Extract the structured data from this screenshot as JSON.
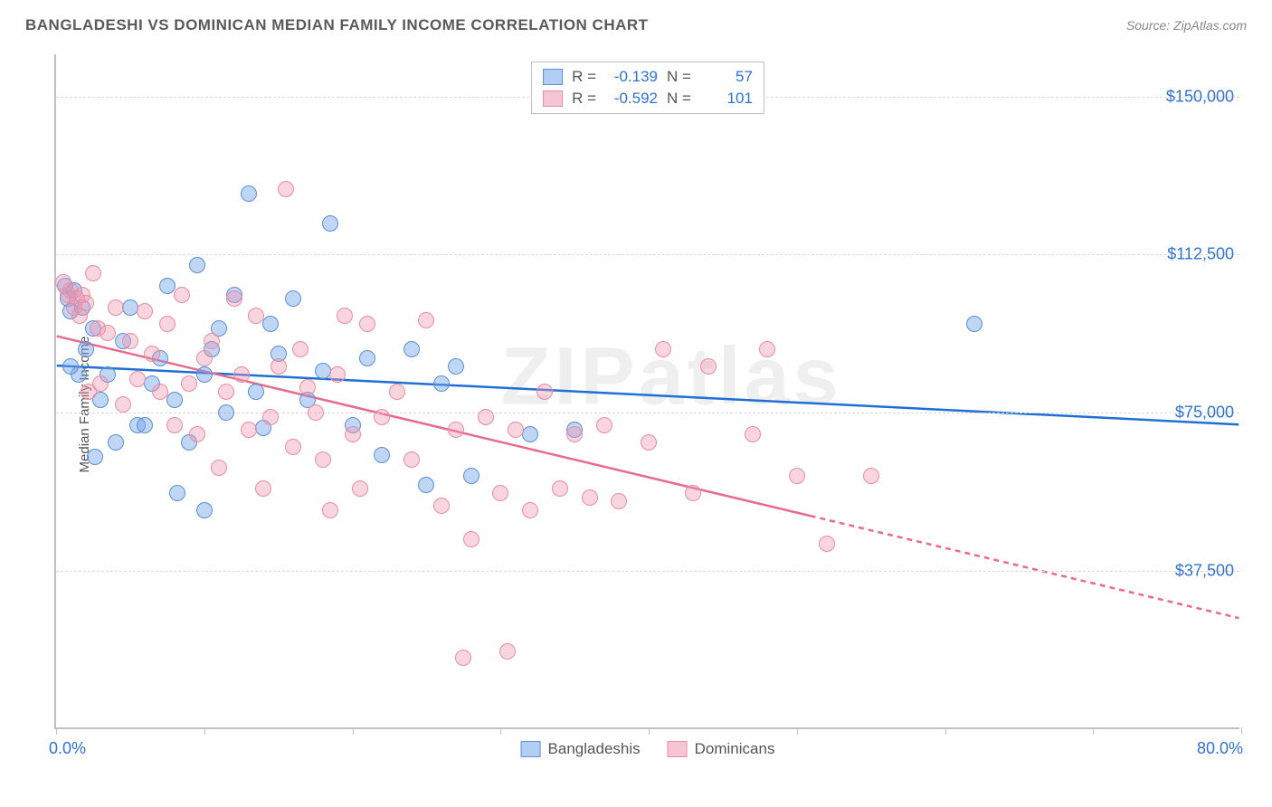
{
  "title": "BANGLADESHI VS DOMINICAN MEDIAN FAMILY INCOME CORRELATION CHART",
  "source": "Source: ZipAtlas.com",
  "watermark": "ZIPatlas",
  "y_axis_label": "Median Family Income",
  "chart": {
    "type": "scatter",
    "xlim": [
      0,
      80
    ],
    "ylim": [
      0,
      160000
    ],
    "y_ticks": [
      37500,
      75000,
      112500,
      150000
    ],
    "y_tick_labels": [
      "$37,500",
      "$75,000",
      "$112,500",
      "$150,000"
    ],
    "x_tick_positions": [
      0,
      10,
      20,
      30,
      40,
      50,
      60,
      70,
      80
    ],
    "x_start_label": "0.0%",
    "x_end_label": "80.0%",
    "grid_color": "#d8d8d8",
    "background_color": "#ffffff",
    "axis_label_color": "#2f72d6",
    "series": [
      {
        "name": "Bangladeshis",
        "color_fill": "rgba(116,165,233,0.45)",
        "color_stroke": "#5c8fd6",
        "trend_line_color": "#1f6fd4",
        "trend_start_y": 86000,
        "trend_end_y": 72000,
        "R": "-0.139",
        "N": "57",
        "points": [
          [
            0.6,
            105000
          ],
          [
            0.8,
            102000
          ],
          [
            1.0,
            99000
          ],
          [
            1.2,
            104000
          ],
          [
            1.5,
            84000
          ],
          [
            1.8,
            100000
          ],
          [
            1.0,
            86000
          ],
          [
            2.0,
            90000
          ],
          [
            2.5,
            95000
          ],
          [
            2.6,
            64500
          ],
          [
            3.0,
            78000
          ],
          [
            3.5,
            84000
          ],
          [
            4.0,
            68000
          ],
          [
            4.5,
            92000
          ],
          [
            5.0,
            100000
          ],
          [
            5.5,
            72000
          ],
          [
            6.0,
            72000
          ],
          [
            6.5,
            82000
          ],
          [
            7.0,
            88000
          ],
          [
            7.5,
            105000
          ],
          [
            8.0,
            78000
          ],
          [
            8.2,
            56000
          ],
          [
            9.0,
            68000
          ],
          [
            9.5,
            110000
          ],
          [
            10.0,
            84000
          ],
          [
            10,
            52000
          ],
          [
            10.5,
            90000
          ],
          [
            11.0,
            95000
          ],
          [
            11.5,
            75000
          ],
          [
            12.0,
            103000
          ],
          [
            13.0,
            127000
          ],
          [
            13.5,
            80000
          ],
          [
            14.0,
            71500
          ],
          [
            14.5,
            96000
          ],
          [
            15.0,
            89000
          ],
          [
            16.0,
            102000
          ],
          [
            17.0,
            78000
          ],
          [
            18.0,
            85000
          ],
          [
            18.5,
            120000
          ],
          [
            20.0,
            72000
          ],
          [
            21.0,
            88000
          ],
          [
            22.0,
            65000
          ],
          [
            24.0,
            90000
          ],
          [
            25.0,
            58000
          ],
          [
            26.0,
            82000
          ],
          [
            27.0,
            86000
          ],
          [
            28.0,
            60000
          ],
          [
            32.0,
            70000
          ],
          [
            35.0,
            71000
          ],
          [
            62.0,
            96000
          ]
        ]
      },
      {
        "name": "Dominicans",
        "color_fill": "rgba(240,150,175,0.4)",
        "color_stroke": "#e88da4",
        "trend_line_color": "#e86a8c",
        "trend_start_y": 93000,
        "trend_end_y": 26000,
        "trend_solid_end_x": 51,
        "R": "-0.592",
        "N": "101",
        "points": [
          [
            0.5,
            106000
          ],
          [
            0.8,
            103000
          ],
          [
            1.0,
            104000
          ],
          [
            1.2,
            100000
          ],
          [
            1.4,
            102000
          ],
          [
            1.6,
            98000
          ],
          [
            1.8,
            103000
          ],
          [
            2.0,
            101000
          ],
          [
            2.2,
            80000
          ],
          [
            2.5,
            108000
          ],
          [
            2.8,
            95000
          ],
          [
            3.0,
            82000
          ],
          [
            3.5,
            94000
          ],
          [
            4.0,
            100000
          ],
          [
            4.5,
            77000
          ],
          [
            5.0,
            92000
          ],
          [
            5.5,
            83000
          ],
          [
            6,
            99000
          ],
          [
            6.5,
            89000
          ],
          [
            7.0,
            80000
          ],
          [
            7.5,
            96000
          ],
          [
            8.0,
            72000
          ],
          [
            8.5,
            103000
          ],
          [
            9.0,
            82000
          ],
          [
            9.5,
            70000
          ],
          [
            10.0,
            88000
          ],
          [
            10.5,
            92000
          ],
          [
            11.0,
            62000
          ],
          [
            11.5,
            80000
          ],
          [
            12.0,
            102000
          ],
          [
            12.5,
            84000
          ],
          [
            13.0,
            71000
          ],
          [
            13.5,
            98000
          ],
          [
            14.0,
            57000
          ],
          [
            14.5,
            74000
          ],
          [
            15.0,
            86000
          ],
          [
            15.5,
            128000
          ],
          [
            16.0,
            67000
          ],
          [
            16.5,
            90000
          ],
          [
            17.0,
            81000
          ],
          [
            17.5,
            75000
          ],
          [
            18.0,
            64000
          ],
          [
            18.5,
            52000
          ],
          [
            19.0,
            84000
          ],
          [
            19.5,
            98000
          ],
          [
            20.0,
            70000
          ],
          [
            20.5,
            57000
          ],
          [
            21.0,
            96000
          ],
          [
            22.0,
            74000
          ],
          [
            23.0,
            80000
          ],
          [
            24.0,
            64000
          ],
          [
            25.0,
            97000
          ],
          [
            26.0,
            53000
          ],
          [
            27.0,
            71000
          ],
          [
            27.5,
            17000
          ],
          [
            28.0,
            45000
          ],
          [
            29.0,
            74000
          ],
          [
            30.0,
            56000
          ],
          [
            30.5,
            18500
          ],
          [
            31.0,
            71000
          ],
          [
            32.0,
            52000
          ],
          [
            33.0,
            80000
          ],
          [
            34.0,
            57000
          ],
          [
            35.0,
            70000
          ],
          [
            36.0,
            55000
          ],
          [
            37.0,
            72000
          ],
          [
            38.0,
            54000
          ],
          [
            40.0,
            68000
          ],
          [
            41.0,
            90000
          ],
          [
            43.0,
            56000
          ],
          [
            44.0,
            86000
          ],
          [
            47.0,
            70000
          ],
          [
            48.0,
            90000
          ],
          [
            50.0,
            60000
          ],
          [
            52.0,
            44000
          ],
          [
            55.0,
            60000
          ]
        ]
      }
    ],
    "stats_box_label_R": "R =",
    "stats_box_label_N": "N ="
  }
}
